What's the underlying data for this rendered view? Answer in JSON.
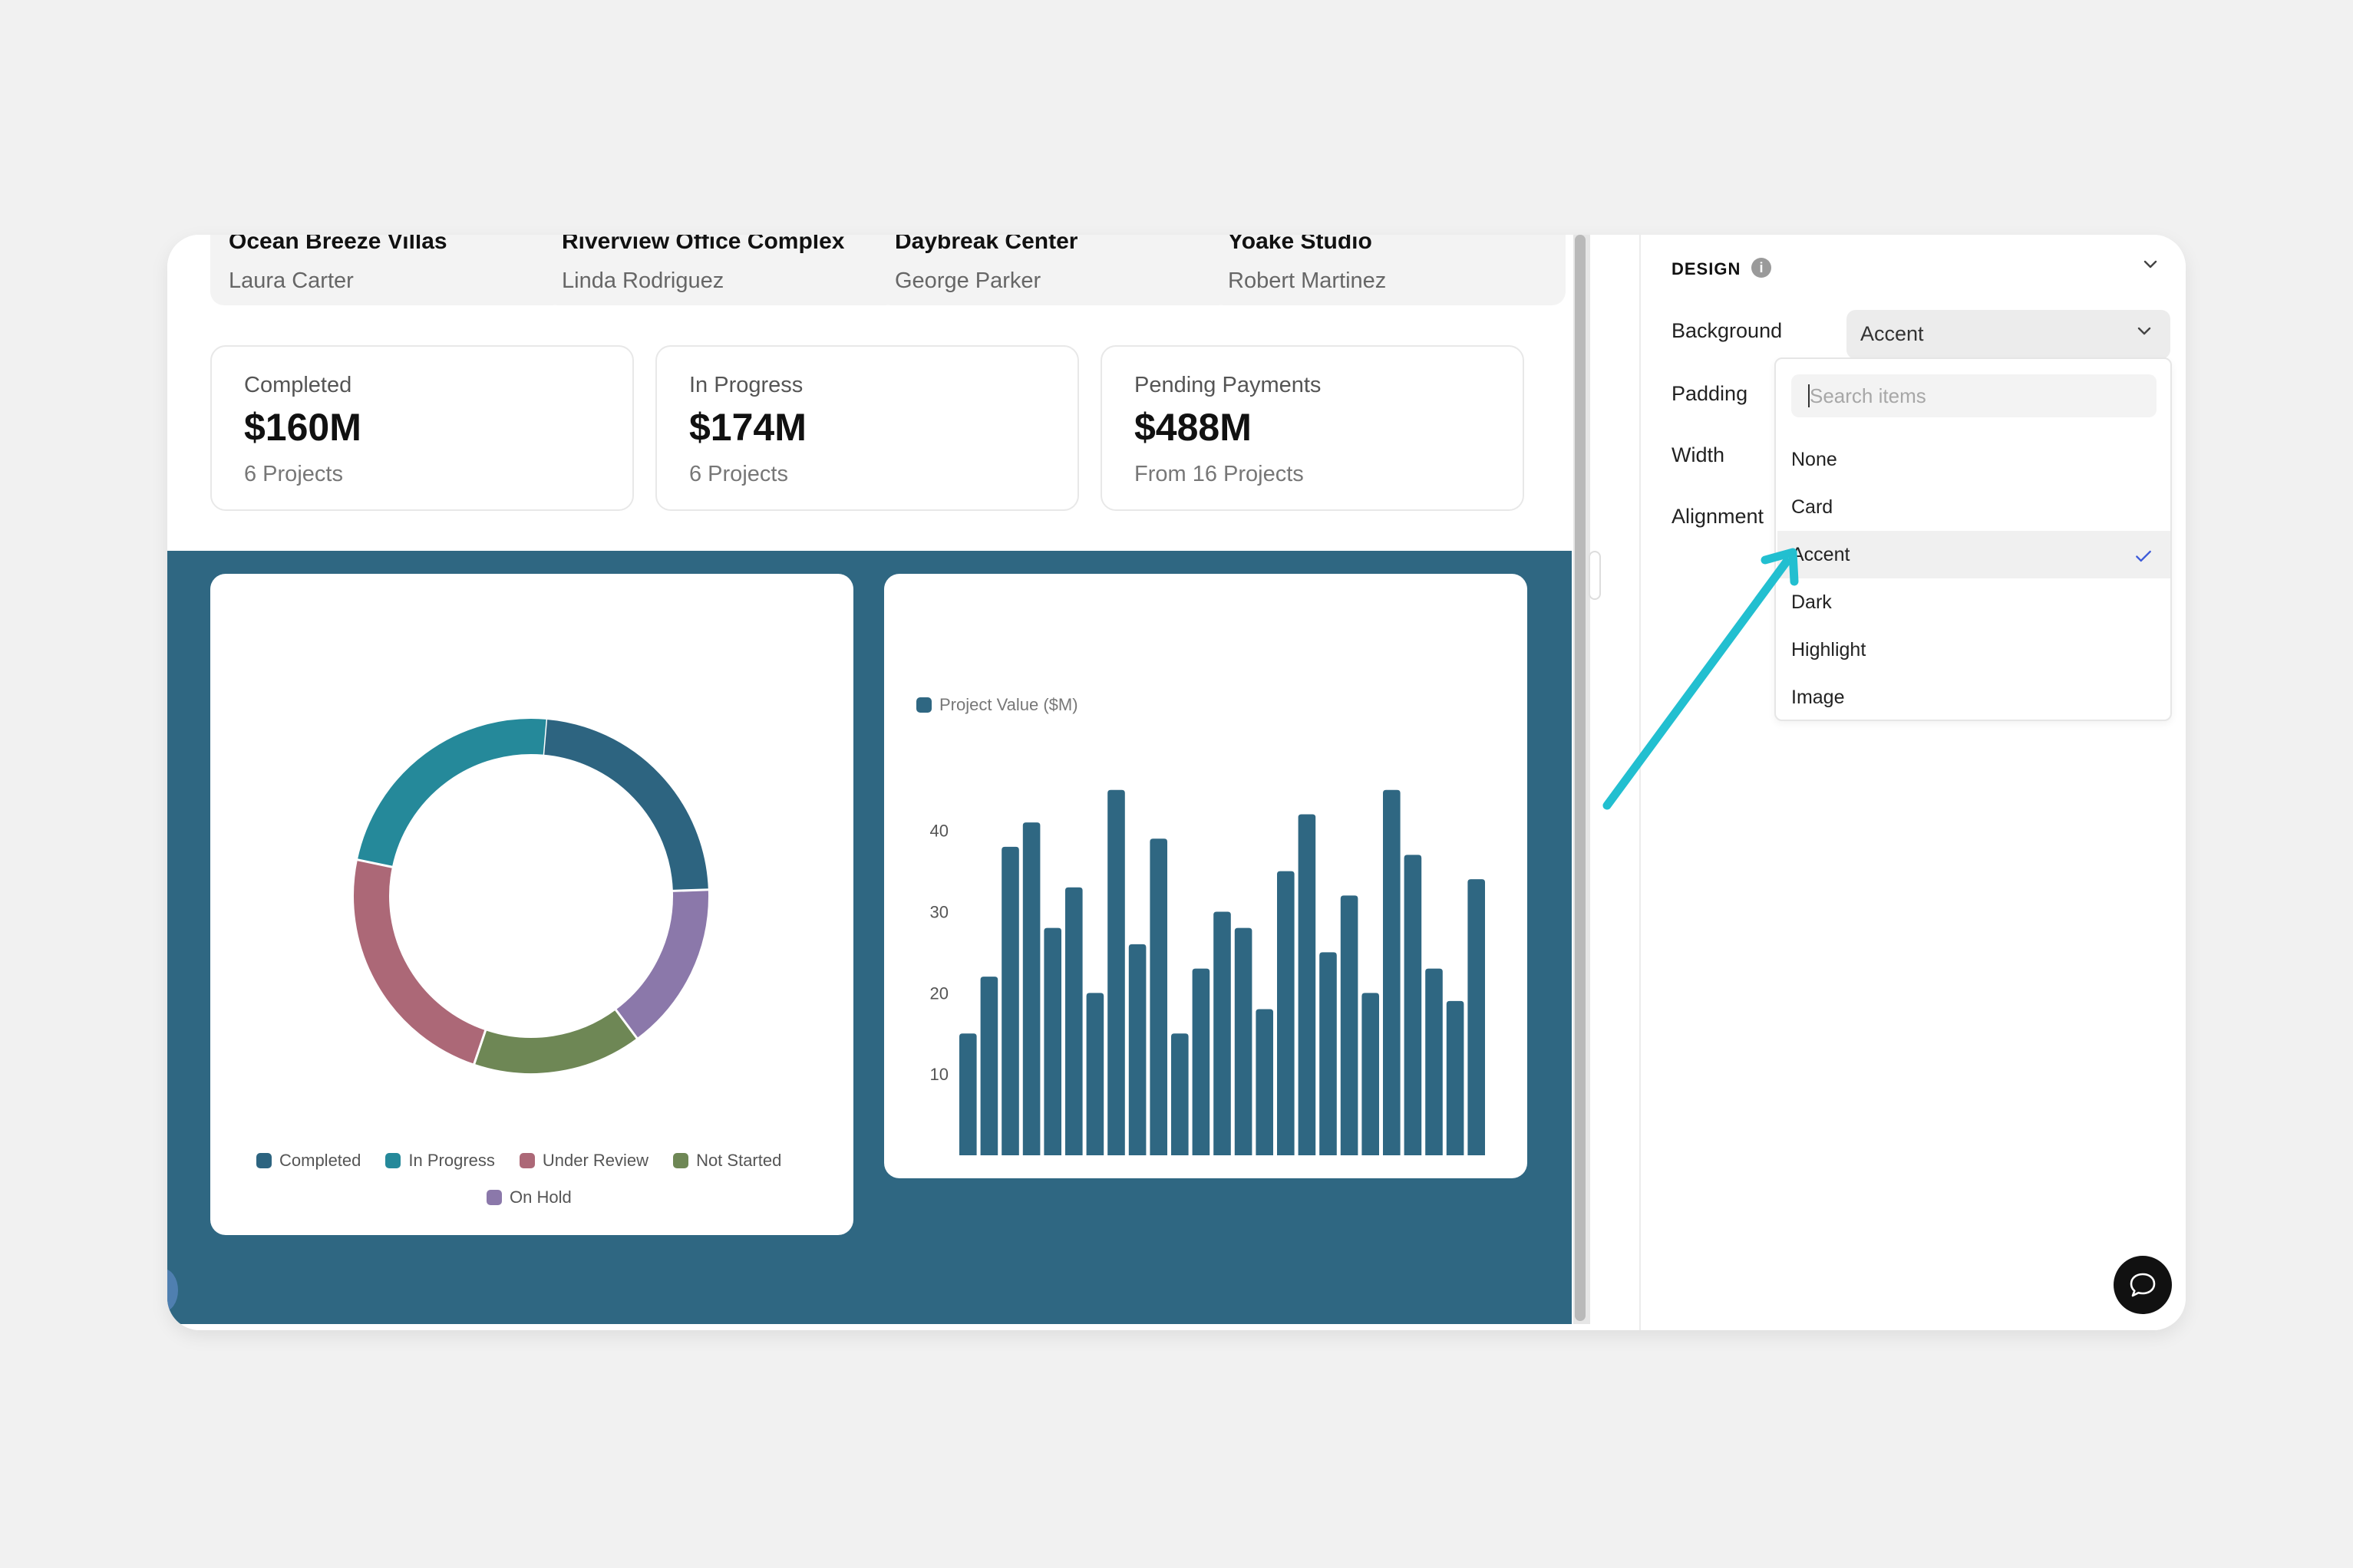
{
  "projects": [
    {
      "name": "Ocean Breeze Villas",
      "client": "Laura Carter"
    },
    {
      "name": "Riverview Office Complex",
      "client": "Linda Rodriguez"
    },
    {
      "name": "Daybreak Center",
      "client": "George Parker"
    },
    {
      "name": "Yoake Studio",
      "client": "Robert Martinez"
    }
  ],
  "stats": [
    {
      "label": "Completed",
      "value": "$160M",
      "sub": "6 Projects"
    },
    {
      "label": "In Progress",
      "value": "$174M",
      "sub": "6 Projects"
    },
    {
      "label": "Pending Payments",
      "value": "$488M",
      "sub": "From 16 Projects"
    }
  ],
  "colors": {
    "accent": "#2f6782",
    "completed": "#2d6480",
    "in_progress": "#25899a",
    "under_review": "#ac6877",
    "not_started": "#6e8755",
    "on_hold": "#8b78aa",
    "bar": "#2f6782",
    "arrow": "#22bfd0",
    "check": "#3d5bd9"
  },
  "chart_data": [
    {
      "type": "pie",
      "variant": "donut",
      "categories": [
        "Completed",
        "In Progress",
        "Under Review",
        "Not Started",
        "On Hold"
      ],
      "values": [
        6,
        6,
        6,
        4,
        4
      ],
      "legend": "bottom"
    },
    {
      "type": "bar",
      "series": [
        {
          "name": "Project Value ($M)",
          "values": [
            15,
            22,
            38,
            41,
            28,
            33,
            20,
            45,
            26,
            39,
            15,
            23,
            30,
            28,
            18,
            35,
            42,
            25,
            32,
            20,
            45,
            37,
            23,
            19,
            34
          ]
        }
      ],
      "y_ticks": [
        10,
        20,
        30,
        40
      ],
      "ylim": [
        0,
        48
      ],
      "legend": "top-left",
      "grid": false
    }
  ],
  "panel": {
    "title": "DESIGN",
    "info_icon": "i",
    "rows": {
      "background": "Background",
      "padding": "Padding",
      "width": "Width",
      "alignment": "Alignment"
    },
    "background_value": "Accent",
    "search_placeholder": "Search items",
    "options": [
      "None",
      "Card",
      "Accent",
      "Dark",
      "Highlight",
      "Image"
    ],
    "selected_option": "Accent"
  }
}
